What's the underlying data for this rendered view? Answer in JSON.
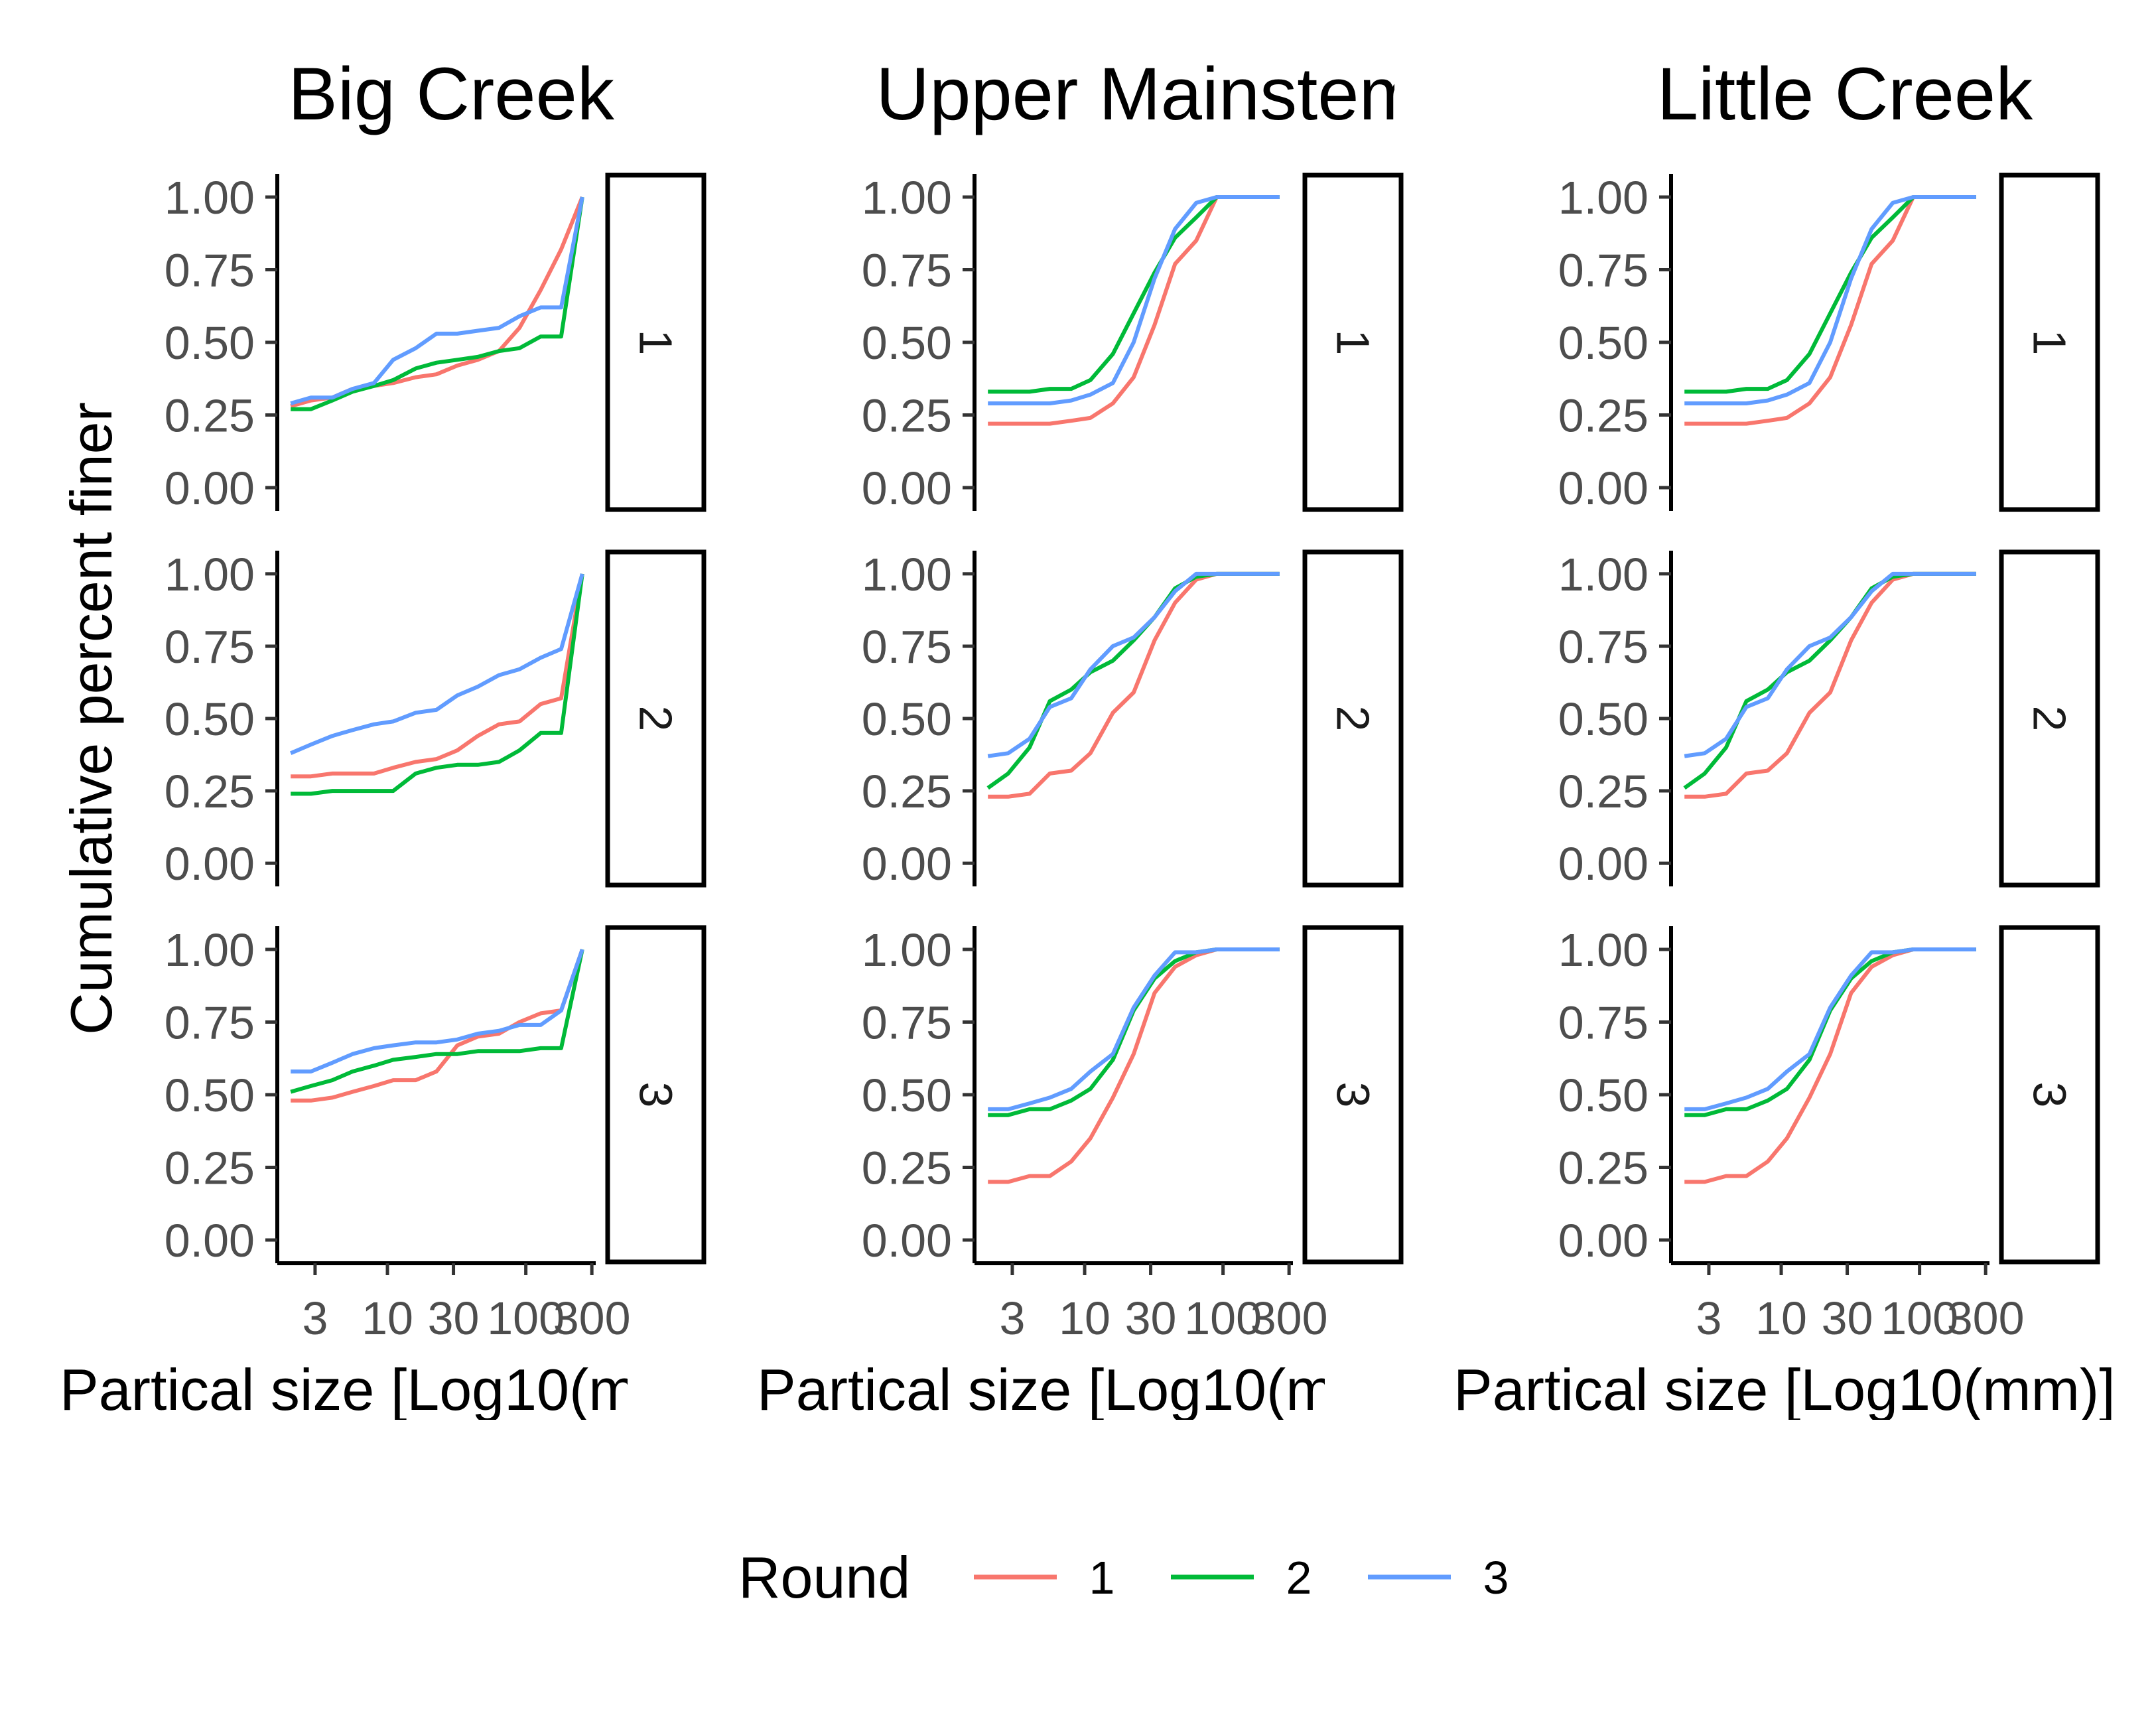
{
  "chart_data": {
    "type": "line",
    "facets": [
      "Big Creek",
      "Upper Mainstem",
      "Little Creek"
    ],
    "rows": [
      "1",
      "2",
      "3"
    ],
    "ylabel": "Cumulative percent finer",
    "xlabel": "Partical size [Log10(mm)]",
    "x_ticks": [
      3,
      10,
      30,
      100,
      300
    ],
    "x_tick_labels": [
      "3",
      "10",
      "30",
      "100",
      "300"
    ],
    "x_scale": "log10",
    "xlim": [
      1.6,
      320
    ],
    "y_ticks": [
      0,
      0.25,
      0.5,
      0.75,
      1
    ],
    "y_tick_labels": [
      "0.00",
      "0.25",
      "0.50",
      "0.75",
      "1.00"
    ],
    "ylim": [
      -0.08,
      1.08
    ],
    "grid": false,
    "legend": {
      "title": "Round",
      "position": "bottom",
      "entries": [
        {
          "name": "1",
          "color": "#F8766D"
        },
        {
          "name": "2",
          "color": "#00BA38"
        },
        {
          "name": "3",
          "color": "#619CFF"
        }
      ]
    },
    "x": [
      2,
      2.8,
      4,
      5.6,
      8,
      11,
      16,
      22.6,
      32,
      45,
      64,
      90,
      128,
      180,
      256
    ],
    "panels": [
      {
        "facet": "Big Creek",
        "row": "1",
        "series": [
          {
            "name": "1",
            "values": [
              0.28,
              0.3,
              0.31,
              0.34,
              0.35,
              0.36,
              0.38,
              0.39,
              0.42,
              0.44,
              0.47,
              0.55,
              0.68,
              0.82,
              1.0
            ]
          },
          {
            "name": "2",
            "values": [
              0.27,
              0.27,
              0.3,
              0.33,
              0.35,
              0.37,
              0.41,
              0.43,
              0.44,
              0.45,
              0.47,
              0.48,
              0.52,
              0.52,
              1.0
            ]
          },
          {
            "name": "3",
            "values": [
              0.29,
              0.31,
              0.31,
              0.34,
              0.36,
              0.44,
              0.48,
              0.53,
              0.53,
              0.54,
              0.55,
              0.59,
              0.62,
              0.62,
              1.0
            ]
          }
        ]
      },
      {
        "facet": "Big Creek",
        "row": "2",
        "series": [
          {
            "name": "1",
            "values": [
              0.3,
              0.3,
              0.31,
              0.31,
              0.31,
              0.33,
              0.35,
              0.36,
              0.39,
              0.44,
              0.48,
              0.49,
              0.55,
              0.57,
              1.0
            ]
          },
          {
            "name": "2",
            "values": [
              0.24,
              0.24,
              0.25,
              0.25,
              0.25,
              0.25,
              0.31,
              0.33,
              0.34,
              0.34,
              0.35,
              0.39,
              0.45,
              0.45,
              1.0
            ]
          },
          {
            "name": "3",
            "values": [
              0.38,
              0.41,
              0.44,
              0.46,
              0.48,
              0.49,
              0.52,
              0.53,
              0.58,
              0.61,
              0.65,
              0.67,
              0.71,
              0.74,
              1.0
            ]
          }
        ]
      },
      {
        "facet": "Big Creek",
        "row": "3",
        "series": [
          {
            "name": "1",
            "values": [
              0.48,
              0.48,
              0.49,
              0.51,
              0.53,
              0.55,
              0.55,
              0.58,
              0.67,
              0.7,
              0.71,
              0.75,
              0.78,
              0.79,
              1.0
            ]
          },
          {
            "name": "2",
            "values": [
              0.51,
              0.53,
              0.55,
              0.58,
              0.6,
              0.62,
              0.63,
              0.64,
              0.64,
              0.65,
              0.65,
              0.65,
              0.66,
              0.66,
              1.0
            ]
          },
          {
            "name": "3",
            "values": [
              0.58,
              0.58,
              0.61,
              0.64,
              0.66,
              0.67,
              0.68,
              0.68,
              0.69,
              0.71,
              0.72,
              0.74,
              0.74,
              0.79,
              1.0
            ]
          }
        ]
      },
      {
        "facet": "Upper Mainstem",
        "row": "1",
        "series": [
          {
            "name": "1",
            "values": [
              0.22,
              0.22,
              0.22,
              0.22,
              0.23,
              0.24,
              0.29,
              0.38,
              0.56,
              0.77,
              0.85,
              1.0,
              1.0,
              1.0,
              1.0
            ]
          },
          {
            "name": "2",
            "values": [
              0.33,
              0.33,
              0.33,
              0.34,
              0.34,
              0.37,
              0.46,
              0.6,
              0.74,
              0.86,
              0.93,
              1.0,
              1.0,
              1.0,
              1.0
            ]
          },
          {
            "name": "3",
            "values": [
              0.29,
              0.29,
              0.29,
              0.29,
              0.3,
              0.32,
              0.36,
              0.5,
              0.72,
              0.89,
              0.98,
              1.0,
              1.0,
              1.0,
              1.0
            ]
          }
        ]
      },
      {
        "facet": "Upper Mainstem",
        "row": "2",
        "series": [
          {
            "name": "1",
            "values": [
              0.23,
              0.23,
              0.24,
              0.31,
              0.32,
              0.38,
              0.52,
              0.59,
              0.77,
              0.9,
              0.98,
              1.0,
              1.0,
              1.0,
              1.0
            ]
          },
          {
            "name": "2",
            "values": [
              0.26,
              0.31,
              0.4,
              0.56,
              0.6,
              0.66,
              0.7,
              0.77,
              0.85,
              0.95,
              0.99,
              1.0,
              1.0,
              1.0,
              1.0
            ]
          },
          {
            "name": "3",
            "values": [
              0.37,
              0.38,
              0.43,
              0.54,
              0.57,
              0.67,
              0.75,
              0.78,
              0.85,
              0.94,
              1.0,
              1.0,
              1.0,
              1.0,
              1.0
            ]
          }
        ]
      },
      {
        "facet": "Upper Mainstem",
        "row": "3",
        "series": [
          {
            "name": "1",
            "values": [
              0.2,
              0.2,
              0.22,
              0.22,
              0.27,
              0.35,
              0.49,
              0.64,
              0.85,
              0.94,
              0.98,
              1.0,
              1.0,
              1.0,
              1.0
            ]
          },
          {
            "name": "2",
            "values": [
              0.43,
              0.43,
              0.45,
              0.45,
              0.48,
              0.52,
              0.62,
              0.79,
              0.9,
              0.96,
              0.99,
              1.0,
              1.0,
              1.0,
              1.0
            ]
          },
          {
            "name": "3",
            "values": [
              0.45,
              0.45,
              0.47,
              0.49,
              0.52,
              0.58,
              0.64,
              0.8,
              0.91,
              0.99,
              0.99,
              1.0,
              1.0,
              1.0,
              1.0
            ]
          }
        ]
      },
      {
        "facet": "Little Creek",
        "row": "1",
        "series": [
          {
            "name": "1",
            "values": [
              0.22,
              0.22,
              0.22,
              0.22,
              0.23,
              0.24,
              0.29,
              0.38,
              0.56,
              0.77,
              0.85,
              1.0,
              1.0,
              1.0,
              1.0
            ]
          },
          {
            "name": "2",
            "values": [
              0.33,
              0.33,
              0.33,
              0.34,
              0.34,
              0.37,
              0.46,
              0.6,
              0.74,
              0.86,
              0.93,
              1.0,
              1.0,
              1.0,
              1.0
            ]
          },
          {
            "name": "3",
            "values": [
              0.29,
              0.29,
              0.29,
              0.29,
              0.3,
              0.32,
              0.36,
              0.5,
              0.72,
              0.89,
              0.98,
              1.0,
              1.0,
              1.0,
              1.0
            ]
          }
        ]
      },
      {
        "facet": "Little Creek",
        "row": "2",
        "series": [
          {
            "name": "1",
            "values": [
              0.23,
              0.23,
              0.24,
              0.31,
              0.32,
              0.38,
              0.52,
              0.59,
              0.77,
              0.9,
              0.98,
              1.0,
              1.0,
              1.0,
              1.0
            ]
          },
          {
            "name": "2",
            "values": [
              0.26,
              0.31,
              0.4,
              0.56,
              0.6,
              0.66,
              0.7,
              0.77,
              0.85,
              0.95,
              0.99,
              1.0,
              1.0,
              1.0,
              1.0
            ]
          },
          {
            "name": "3",
            "values": [
              0.37,
              0.38,
              0.43,
              0.54,
              0.57,
              0.67,
              0.75,
              0.78,
              0.85,
              0.94,
              1.0,
              1.0,
              1.0,
              1.0,
              1.0
            ]
          }
        ]
      },
      {
        "facet": "Little Creek",
        "row": "3",
        "series": [
          {
            "name": "1",
            "values": [
              0.2,
              0.2,
              0.22,
              0.22,
              0.27,
              0.35,
              0.49,
              0.64,
              0.85,
              0.94,
              0.98,
              1.0,
              1.0,
              1.0,
              1.0
            ]
          },
          {
            "name": "2",
            "values": [
              0.43,
              0.43,
              0.45,
              0.45,
              0.48,
              0.52,
              0.62,
              0.79,
              0.9,
              0.96,
              0.99,
              1.0,
              1.0,
              1.0,
              1.0
            ]
          },
          {
            "name": "3",
            "values": [
              0.45,
              0.45,
              0.47,
              0.49,
              0.52,
              0.58,
              0.64,
              0.8,
              0.91,
              0.99,
              0.99,
              1.0,
              1.0,
              1.0,
              1.0
            ]
          }
        ]
      }
    ]
  }
}
